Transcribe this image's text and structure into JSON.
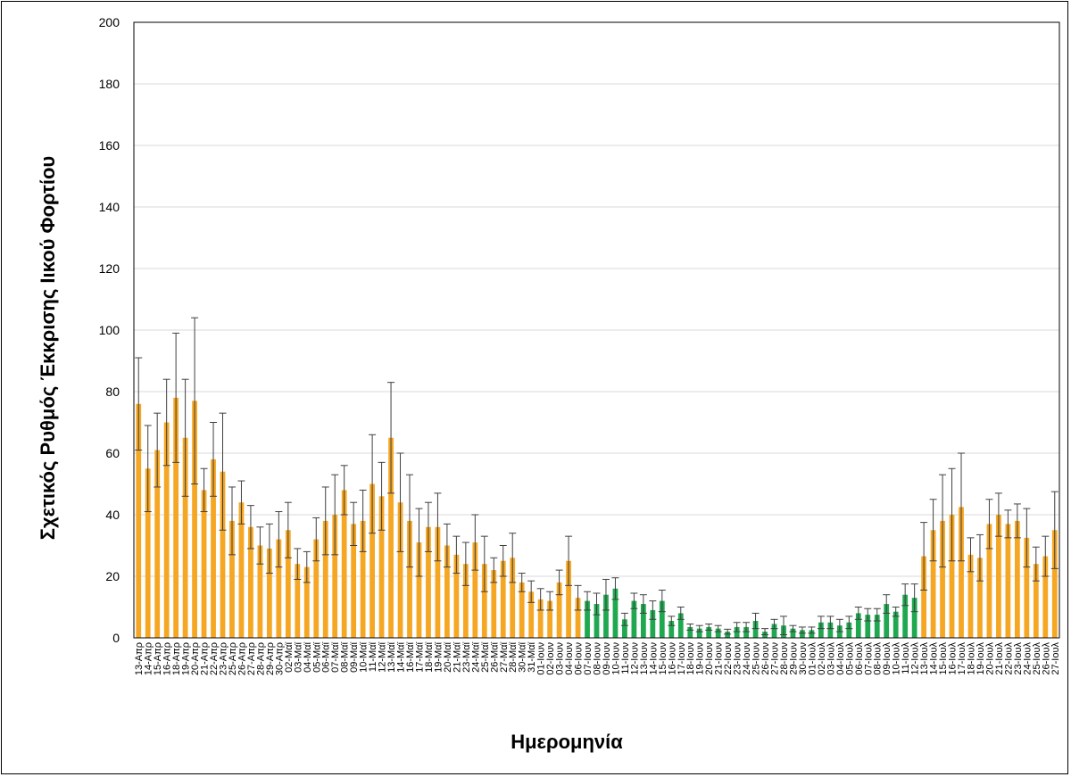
{
  "chart_data": {
    "type": "bar",
    "ylabel": "Σχετικός Ρυθμός Έκκρισης Ιικού Φορτίου",
    "xlabel": "Ημερομηνία",
    "ylim": [
      0,
      200
    ],
    "yticks": [
      0,
      20,
      40,
      60,
      80,
      100,
      120,
      140,
      160,
      180,
      200
    ],
    "grid": true,
    "colors": {
      "orange": "#f5a623",
      "green": "#1fa84f",
      "error": "#404040",
      "grid": "#d9d9d9"
    },
    "categories": [
      "13-Απρ",
      "14-Απρ",
      "15-Απρ",
      "16-Απρ",
      "18-Απρ",
      "19-Απρ",
      "20-Απρ",
      "21-Απρ",
      "22-Απρ",
      "23-Απρ",
      "25-Απρ",
      "26-Απρ",
      "27-Απρ",
      "28-Απρ",
      "29-Απρ",
      "30-Απρ",
      "02-Μαϊ",
      "03-Μαϊ",
      "04-Μαϊ",
      "05-Μαϊ",
      "06-Μαϊ",
      "07-Μαϊ",
      "08-Μαϊ",
      "09-Μαϊ",
      "10-Μαϊ",
      "11-Μαϊ",
      "12-Μαϊ",
      "13-Μαϊ",
      "14-Μαϊ",
      "16-Μαϊ",
      "17-Μαϊ",
      "18-Μαϊ",
      "19-Μαϊ",
      "20-Μαϊ",
      "21-Μαϊ",
      "23-Μαϊ",
      "24-Μαϊ",
      "25-Μαϊ",
      "26-Μαϊ",
      "27-Μαϊ",
      "28-Μαϊ",
      "30-Μαϊ",
      "31-Μαϊ",
      "01-Ιουν",
      "02-Ιουν",
      "03-Ιουν",
      "04-Ιουν",
      "06-Ιουν",
      "07-Ιουν",
      "08-Ιουν",
      "09-Ιουν",
      "10-Ιουν",
      "11-Ιουν",
      "12-Ιουν",
      "13-Ιουν",
      "14-Ιουν",
      "15-Ιουν",
      "16-Ιουν",
      "17-Ιουν",
      "18-Ιουν",
      "19-Ιουν",
      "20-Ιουν",
      "21-Ιουν",
      "22-Ιουν",
      "23-Ιουν",
      "24-Ιουν",
      "25-Ιουν",
      "26-Ιουν",
      "27-Ιουν",
      "28-Ιουν",
      "29-Ιουν",
      "30-Ιουν",
      "01-Ιουλ",
      "02-Ιουλ",
      "03-Ιουλ",
      "04-Ιουλ",
      "05-Ιουλ",
      "06-Ιουλ",
      "07-Ιουλ",
      "08-Ιουλ",
      "09-Ιουλ",
      "10-Ιουλ",
      "11-Ιουλ",
      "12-Ιουλ",
      "13-Ιουλ",
      "14-Ιουλ",
      "15-Ιουλ",
      "16-Ιουλ",
      "17-Ιουλ",
      "18-Ιουλ",
      "19-Ιουλ",
      "20-Ιουλ",
      "21-Ιουλ",
      "22-Ιουλ",
      "23-Ιουλ",
      "24-Ιουλ",
      "25-Ιουλ",
      "26-Ιουλ",
      "27-Ιουλ"
    ],
    "values": [
      76,
      55,
      61,
      70,
      78,
      65,
      77,
      48,
      58,
      54,
      38,
      44,
      36,
      30,
      29,
      32,
      35,
      24,
      23,
      32,
      38,
      40,
      48,
      37,
      38,
      50,
      46,
      65,
      44,
      38,
      31,
      36,
      36,
      30,
      27,
      24,
      31,
      24,
      22,
      25,
      26,
      18,
      15,
      12.5,
      12,
      18,
      25,
      13,
      12,
      11,
      14,
      16,
      6,
      12,
      11,
      9,
      12,
      5.5,
      8,
      3.5,
      3,
      3.5,
      3,
      2,
      3.5,
      3.5,
      5.5,
      2,
      4.5,
      4,
      3,
      2.5,
      2.5,
      5,
      5,
      4,
      5,
      8,
      7.5,
      7.5,
      11,
      8.5,
      14,
      13,
      26.5,
      35,
      38,
      40,
      42.5,
      27,
      26,
      37,
      40,
      37,
      38,
      32.5,
      24,
      26.5,
      35
    ],
    "errors": [
      15,
      14,
      12,
      14,
      21,
      19,
      27,
      7,
      12,
      19,
      11,
      7,
      7,
      6,
      8,
      9,
      9,
      5,
      5,
      7,
      11,
      13,
      8,
      7,
      10,
      16,
      11,
      18,
      16,
      15,
      11,
      8,
      11,
      7,
      6,
      7,
      9,
      9,
      4,
      5,
      8,
      3,
      3.5,
      3.5,
      3,
      4,
      8,
      4,
      3,
      3.5,
      5,
      3.5,
      2,
      2.5,
      3,
      3,
      3.5,
      1.5,
      2,
      1,
      1,
      1,
      1,
      0.8,
      1.5,
      1.5,
      2.5,
      1,
      1.5,
      3,
      1,
      1,
      1,
      2,
      2,
      2,
      2,
      2,
      2,
      2,
      3,
      1.5,
      3.5,
      4.5,
      11,
      10,
      15,
      15,
      17.5,
      5.5,
      7.5,
      8,
      7,
      4.5,
      5.5,
      9.5,
      5.5,
      6.5,
      12.5
    ],
    "colorByIndex": {
      "orange": [
        [
          0,
          47
        ],
        [
          84,
          98
        ]
      ],
      "green": [
        [
          48,
          83
        ]
      ]
    }
  }
}
